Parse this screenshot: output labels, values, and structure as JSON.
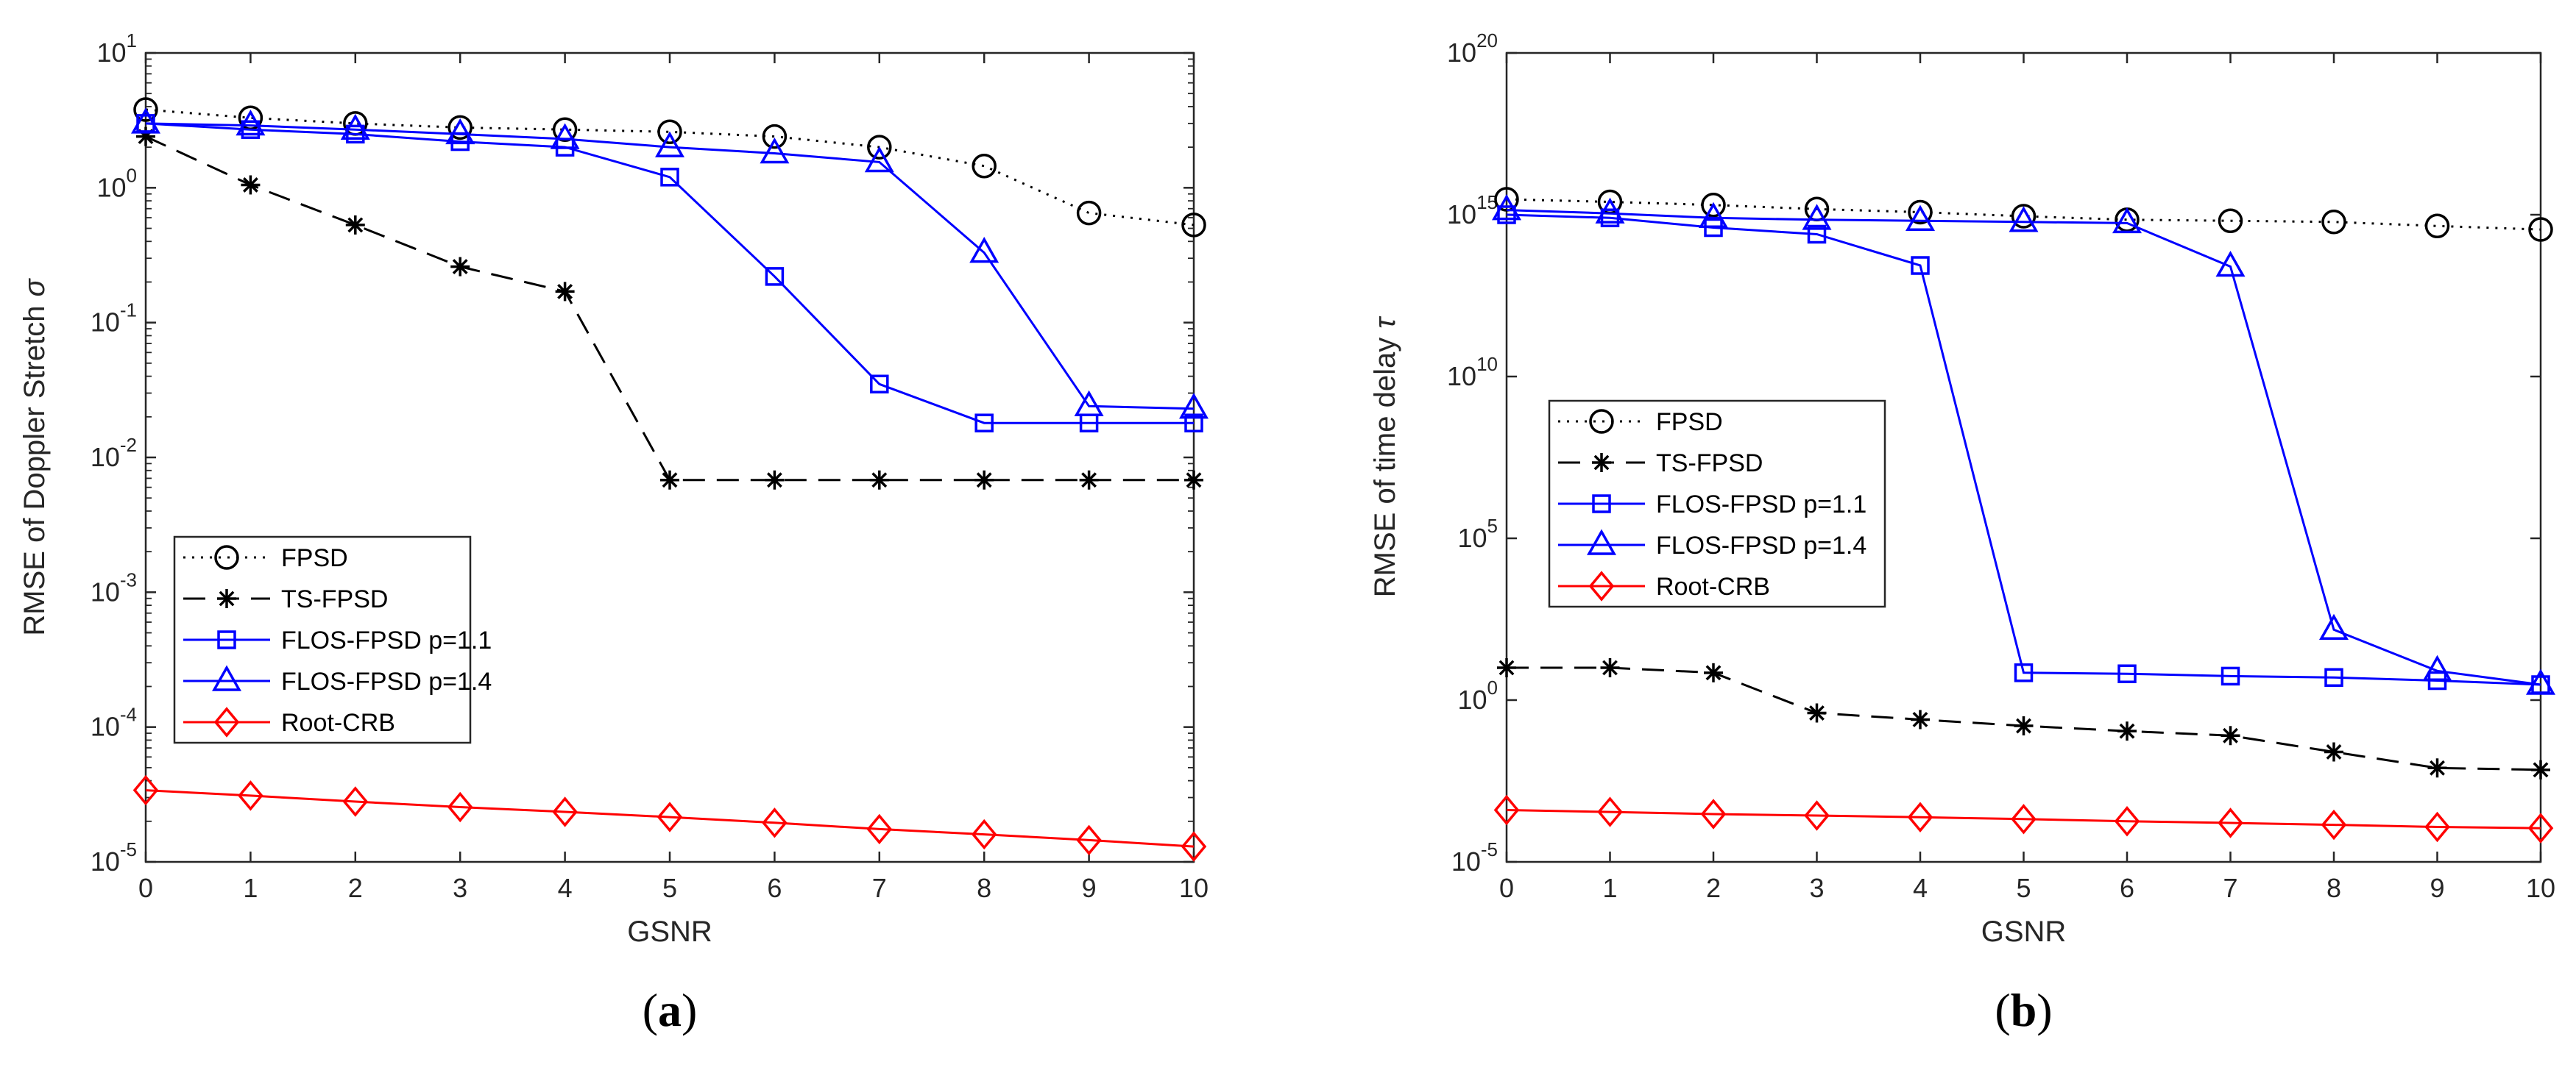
{
  "chart_data": [
    {
      "type": "line",
      "panel_label": "a",
      "xlabel": "GSNR",
      "ylabel": "RMSE of Doppler Stretch",
      "ylabel_symbol": "σ",
      "yscale": "log",
      "xlim": [
        0,
        10
      ],
      "ylim": [
        1e-05,
        10
      ],
      "x": [
        0,
        1,
        2,
        3,
        4,
        5,
        6,
        7,
        8,
        9,
        10
      ],
      "x_ticks": [
        "0",
        "1",
        "2",
        "3",
        "4",
        "5",
        "6",
        "7",
        "8",
        "9",
        "10"
      ],
      "y_ticks": [
        {
          "base": "10",
          "exp": "-5"
        },
        {
          "base": "10",
          "exp": "-4"
        },
        {
          "base": "10",
          "exp": "-3"
        },
        {
          "base": "10",
          "exp": "-2"
        },
        {
          "base": "10",
          "exp": "-1"
        },
        {
          "base": "10",
          "exp": "0"
        },
        {
          "base": "10",
          "exp": "1"
        }
      ],
      "legend_position": "lower-left",
      "series": [
        {
          "name": "FPSD",
          "color": "#000000",
          "dash": "dotted",
          "marker": "circle",
          "values": [
            3.8,
            3.3,
            3.0,
            2.8,
            2.7,
            2.6,
            2.4,
            2.0,
            1.45,
            0.65,
            0.53
          ]
        },
        {
          "name": "TS-FPSD",
          "color": "#000000",
          "dash": "dashed",
          "marker": "asterisk",
          "values": [
            2.4,
            1.05,
            0.53,
            0.26,
            0.17,
            0.0068,
            0.0068,
            0.0068,
            0.0068,
            0.0068,
            0.0068
          ]
        },
        {
          "name": "FLOS-FPSD p=1.1",
          "color": "#0000ff",
          "dash": "solid",
          "marker": "square",
          "values": [
            3.0,
            2.7,
            2.5,
            2.2,
            2.0,
            1.2,
            0.22,
            0.035,
            0.018,
            0.018,
            0.018
          ]
        },
        {
          "name": "FLOS-FPSD p=1.4",
          "color": "#0000ff",
          "dash": "solid",
          "marker": "triangle",
          "values": [
            3.0,
            2.9,
            2.7,
            2.5,
            2.3,
            2.0,
            1.8,
            1.55,
            0.33,
            0.024,
            0.023
          ]
        },
        {
          "name": "Root-CRB",
          "color": "#ff0000",
          "dash": "solid",
          "marker": "diamond",
          "values": [
            3.4e-05,
            3.1e-05,
            2.8e-05,
            2.55e-05,
            2.35e-05,
            2.15e-05,
            1.95e-05,
            1.75e-05,
            1.6e-05,
            1.45e-05,
            1.3e-05
          ]
        }
      ]
    },
    {
      "type": "line",
      "panel_label": "b",
      "xlabel": "GSNR",
      "ylabel": "RMSE of time delay",
      "ylabel_symbol": "τ",
      "yscale": "log",
      "xlim": [
        0,
        10
      ],
      "ylim": [
        1e-05,
        1e+20
      ],
      "x": [
        0,
        1,
        2,
        3,
        4,
        5,
        6,
        7,
        8,
        9,
        10
      ],
      "x_ticks": [
        "0",
        "1",
        "2",
        "3",
        "4",
        "5",
        "6",
        "7",
        "8",
        "9",
        "10"
      ],
      "y_ticks": [
        {
          "base": "10",
          "exp": "-5"
        },
        {
          "base": "10",
          "exp": "0"
        },
        {
          "base": "10",
          "exp": "5"
        },
        {
          "base": "10",
          "exp": "10"
        },
        {
          "base": "10",
          "exp": "15"
        },
        {
          "base": "10",
          "exp": "20"
        }
      ],
      "legend_position": "middle-left",
      "series": [
        {
          "name": "FPSD",
          "color": "#000000",
          "dash": "dotted",
          "marker": "circle",
          "values": [
            3000000000000000.0,
            2500000000000000.0,
            2000000000000000.0,
            1500000000000000.0,
            1200000000000000.0,
            900000000000000.0,
            700000000000000.0,
            650000000000000.0,
            600000000000000.0,
            450000000000000.0,
            350000000000000.0
          ]
        },
        {
          "name": "TS-FPSD",
          "color": "#000000",
          "dash": "dashed",
          "marker": "asterisk",
          "values": [
            10,
            10,
            7,
            0.4,
            0.25,
            0.16,
            0.11,
            0.08,
            0.025,
            0.008,
            0.007
          ]
        },
        {
          "name": "FLOS-FPSD p=1.1",
          "color": "#0000ff",
          "dash": "solid",
          "marker": "square",
          "values": [
            1000000000000000.0,
            800000000000000.0,
            400000000000000.0,
            250000000000000.0,
            27000000000000.0,
            7,
            6.5,
            5.5,
            5,
            4,
            3
          ]
        },
        {
          "name": "FLOS-FPSD p=1.4",
          "color": "#0000ff",
          "dash": "solid",
          "marker": "triangle",
          "values": [
            1400000000000000.0,
            1100000000000000.0,
            800000000000000.0,
            700000000000000.0,
            650000000000000.0,
            600000000000000.0,
            550000000000000.0,
            25000000000000.0,
            150,
            8,
            3
          ]
        },
        {
          "name": "Root-CRB",
          "color": "#ff0000",
          "dash": "solid",
          "marker": "diamond",
          "values": [
            0.0004,
            0.00035,
            0.0003,
            0.00027,
            0.00024,
            0.00021,
            0.00018,
            0.00016,
            0.00014,
            0.00012,
            0.00011
          ]
        }
      ]
    }
  ]
}
